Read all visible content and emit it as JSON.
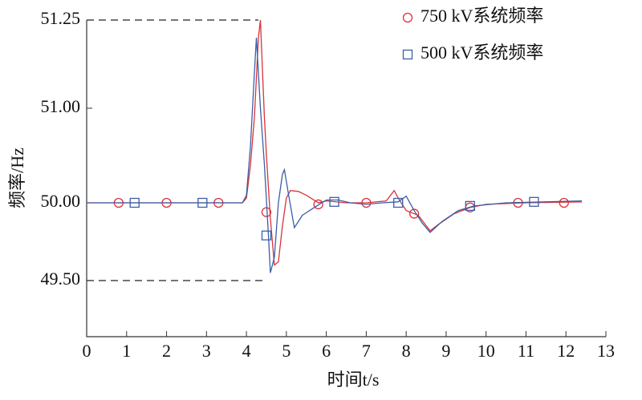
{
  "chart_data": {
    "type": "line",
    "x_label": "时间t/s",
    "y_label": "频率/Hz",
    "xlim": [
      0,
      13
    ],
    "xticks": [
      0,
      1,
      2,
      3,
      4,
      5,
      6,
      7,
      8,
      9,
      10,
      11,
      12,
      13
    ],
    "ylim": [
      49.14,
      51.25
    ],
    "yticks": [
      {
        "value": 51.25,
        "label": "51.25"
      },
      {
        "value": 51,
        "label": "51.00"
      },
      {
        "value": 50,
        "label": "50.00"
      },
      {
        "value": 49.5,
        "label": "49.50"
      }
    ],
    "legend": "upper right",
    "series": [
      {
        "name": "750 kV系统频率",
        "color": "#d9333a",
        "marker": "circle",
        "x": [
          0,
          3.9,
          4.0,
          4.1,
          4.2,
          4.3,
          4.35,
          4.45,
          4.5,
          4.6,
          4.7,
          4.8,
          4.9,
          5.0,
          5.1,
          5.3,
          5.5,
          5.8,
          6.0,
          6.5,
          7.0,
          7.5,
          7.7,
          7.8,
          8.0,
          8.3,
          8.6,
          8.8,
          9.2,
          9.6,
          10,
          11,
          12.4
        ],
        "values": [
          50,
          50,
          50.05,
          50.4,
          50.9,
          51.2,
          51.25,
          50.9,
          50.5,
          49.9,
          49.6,
          49.62,
          49.85,
          50.05,
          50.13,
          50.12,
          50.08,
          50.0,
          50.02,
          50.0,
          50.0,
          50.02,
          50.13,
          50.05,
          49.95,
          49.92,
          49.82,
          49.86,
          49.93,
          49.97,
          49.99,
          50,
          50.01
        ],
        "markers": {
          "x": [
            0.8,
            2.0,
            3.3,
            4.5,
            5.8,
            7.0,
            8.2,
            9.6,
            10.8,
            11.95
          ],
          "values": [
            50,
            50,
            50,
            49.94,
            49.99,
            50,
            49.93,
            49.97,
            50,
            50
          ]
        }
      },
      {
        "name": "500 kV系统频率",
        "color": "#3a5fa8",
        "marker": "square",
        "x": [
          0,
          3.9,
          4.0,
          4.1,
          4.2,
          4.25,
          4.35,
          4.45,
          4.55,
          4.6,
          4.7,
          4.8,
          4.9,
          4.95,
          5.05,
          5.2,
          5.4,
          5.7,
          6.0,
          6.3,
          6.6,
          7.0,
          7.4,
          7.8,
          8.0,
          8.2,
          8.4,
          8.6,
          8.9,
          9.3,
          9.7,
          10.5,
          12.4
        ],
        "values": [
          50,
          50,
          50.08,
          50.6,
          51.1,
          51.2,
          51.0,
          50.4,
          49.8,
          49.55,
          49.65,
          50.0,
          50.3,
          50.35,
          50.1,
          49.84,
          49.92,
          49.97,
          50.03,
          50.03,
          50.0,
          49.99,
          50.0,
          50.01,
          50.07,
          49.95,
          49.87,
          49.81,
          49.88,
          49.95,
          49.98,
          50.0,
          50.02
        ],
        "markers": {
          "x": [
            1.2,
            2.9,
            4.5,
            6.2,
            7.8,
            9.6,
            11.2
          ],
          "values": [
            50,
            50,
            49.79,
            50.01,
            50,
            49.98,
            50.01
          ]
        }
      }
    ]
  }
}
